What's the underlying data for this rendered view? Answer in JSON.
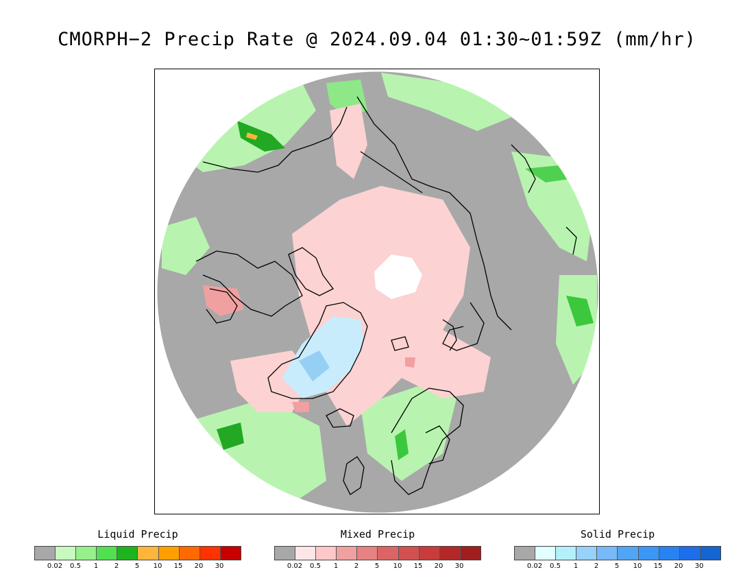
{
  "title": "CMORPH−2 Precip Rate @ 2024.09.04 01:30~01:59Z (mm/hr)",
  "map": {
    "projection": "north-polar-stereographic",
    "background_color": "#a8a8a8",
    "colors": {
      "no_precip": "#a8a8a8",
      "liquid_light": "#b8f4b0",
      "liquid_mid": "#8ee888",
      "liquid_heavy": "#20a820",
      "mixed_light": "#fcd2d2",
      "mixed_mid": "#f0a0a0",
      "solid_light": "#c8ecfc",
      "solid_mid": "#96cff4",
      "polar_gap": "#ffffff",
      "coastline": "#000000"
    }
  },
  "legends": [
    {
      "title": "Liquid Precip",
      "colors": [
        "#a8a8a8",
        "#c8fac0",
        "#96f08c",
        "#50e050",
        "#1eb41e",
        "#ffb43c",
        "#ffa000",
        "#ff6a00",
        "#ff3200",
        "#c80000"
      ],
      "ticks": [
        "0.02",
        "0.5",
        "1",
        "2",
        "5",
        "10",
        "15",
        "20",
        "30"
      ]
    },
    {
      "title": "Mixed Precip",
      "colors": [
        "#a8a8a8",
        "#ffe6e6",
        "#ffc8c8",
        "#f0a0a0",
        "#e68282",
        "#dc6464",
        "#d25050",
        "#c83c3c",
        "#b42828",
        "#a01e1e"
      ],
      "ticks": [
        "0.02",
        "0.5",
        "1",
        "2",
        "5",
        "10",
        "15",
        "20",
        "30"
      ]
    },
    {
      "title": "Solid Precip",
      "colors": [
        "#a8a8a8",
        "#e1ffff",
        "#b4f0fa",
        "#96d2fa",
        "#78b9fa",
        "#50a5f5",
        "#3c96f5",
        "#2882f0",
        "#1e6eeb",
        "#1464d2"
      ],
      "ticks": [
        "0.02",
        "0.5",
        "1",
        "2",
        "5",
        "10",
        "15",
        "20",
        "30"
      ]
    }
  ]
}
